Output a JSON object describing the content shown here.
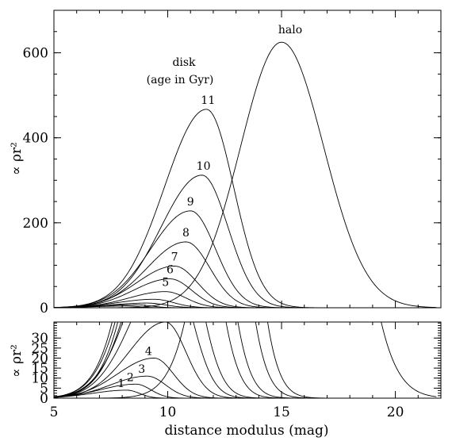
{
  "chart_data": {
    "type": "line",
    "xlabel": "distance modulus (mag)",
    "top_panel": {
      "ylabel": "∝ ρr²",
      "ylim": [
        0,
        700
      ],
      "yticks": [
        "0",
        "200",
        "400",
        "600"
      ],
      "annotations": [
        "disk",
        "(age in Gyr)",
        "halo"
      ]
    },
    "bottom_panel": {
      "ylabel": "∝ ρr²",
      "ylim": [
        0,
        38
      ],
      "yticks": [
        "0",
        "5",
        "10",
        "15",
        "20",
        "25",
        "30"
      ]
    },
    "xlim": [
      5,
      22
    ],
    "xticks": [
      "5",
      "10",
      "15",
      "20"
    ],
    "series": [
      {
        "name": "1",
        "peak_x": 8.2,
        "peak_y": 4,
        "width_left": 1.5,
        "width_right": 0.55
      },
      {
        "name": "2",
        "peak_x": 8.6,
        "peak_y": 7,
        "width_left": 1.55,
        "width_right": 0.65
      },
      {
        "name": "3",
        "peak_x": 9.1,
        "peak_y": 11,
        "width_left": 1.6,
        "width_right": 0.8
      },
      {
        "name": "4",
        "peak_x": 9.4,
        "peak_y": 20,
        "width_left": 1.6,
        "width_right": 0.85
      },
      {
        "name": "5",
        "peak_x": 9.9,
        "peak_y": 38,
        "width_left": 1.6,
        "width_right": 0.9
      },
      {
        "name": "6",
        "peak_x": 10.1,
        "peak_y": 68,
        "width_left": 1.6,
        "width_right": 0.95
      },
      {
        "name": "7",
        "peak_x": 10.3,
        "peak_y": 98,
        "width_left": 1.65,
        "width_right": 1.0
      },
      {
        "name": "8",
        "peak_x": 10.8,
        "peak_y": 155,
        "width_left": 1.7,
        "width_right": 1.05
      },
      {
        "name": "9",
        "peak_x": 11.0,
        "peak_y": 228,
        "width_left": 1.75,
        "width_right": 1.1
      },
      {
        "name": "10",
        "peak_x": 11.5,
        "peak_y": 312,
        "width_left": 1.8,
        "width_right": 1.15
      },
      {
        "name": "11",
        "peak_x": 11.7,
        "peak_y": 467,
        "width_left": 1.85,
        "width_right": 1.2
      },
      {
        "name": "halo",
        "peak_x": 15.0,
        "peak_y": 625,
        "width_left": 1.8,
        "width_right": 1.85
      }
    ]
  }
}
